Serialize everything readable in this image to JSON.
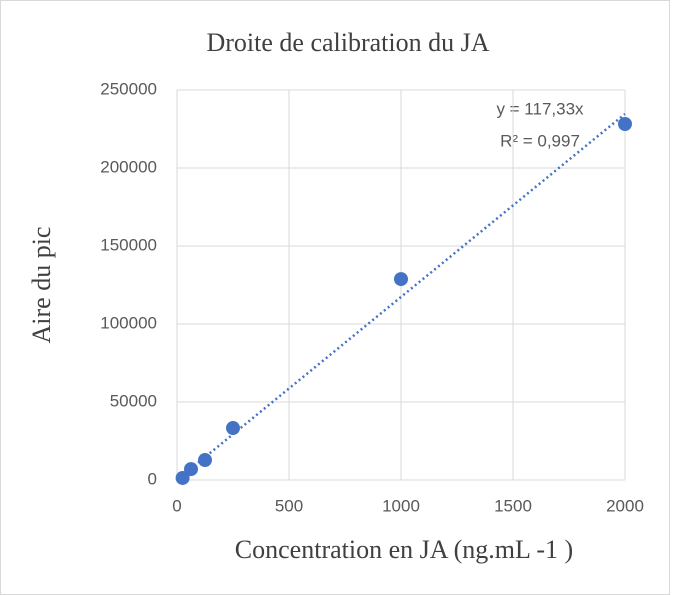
{
  "chart_data": {
    "type": "scatter",
    "title": "Droite de calibration du JA",
    "x_label": "Concentration en JA (ng.mL -1 )",
    "y_label": "Aire du pic",
    "x": [
      25,
      62.5,
      125,
      250,
      1000,
      2000
    ],
    "values": [
      1300,
      7000,
      12800,
      33300,
      128800,
      228200
    ],
    "color": "#4472c4",
    "xlim": [
      0,
      2000
    ],
    "xticks": [
      0,
      500,
      1000,
      1500,
      2000
    ],
    "ylim": [
      0,
      250000
    ],
    "yticks": [
      0,
      50000,
      100000,
      150000,
      200000,
      250000
    ],
    "grid": true,
    "trendline": {
      "slope": 117.33,
      "equation": "y = 117,33x",
      "r2": "R² = 0,997"
    }
  }
}
